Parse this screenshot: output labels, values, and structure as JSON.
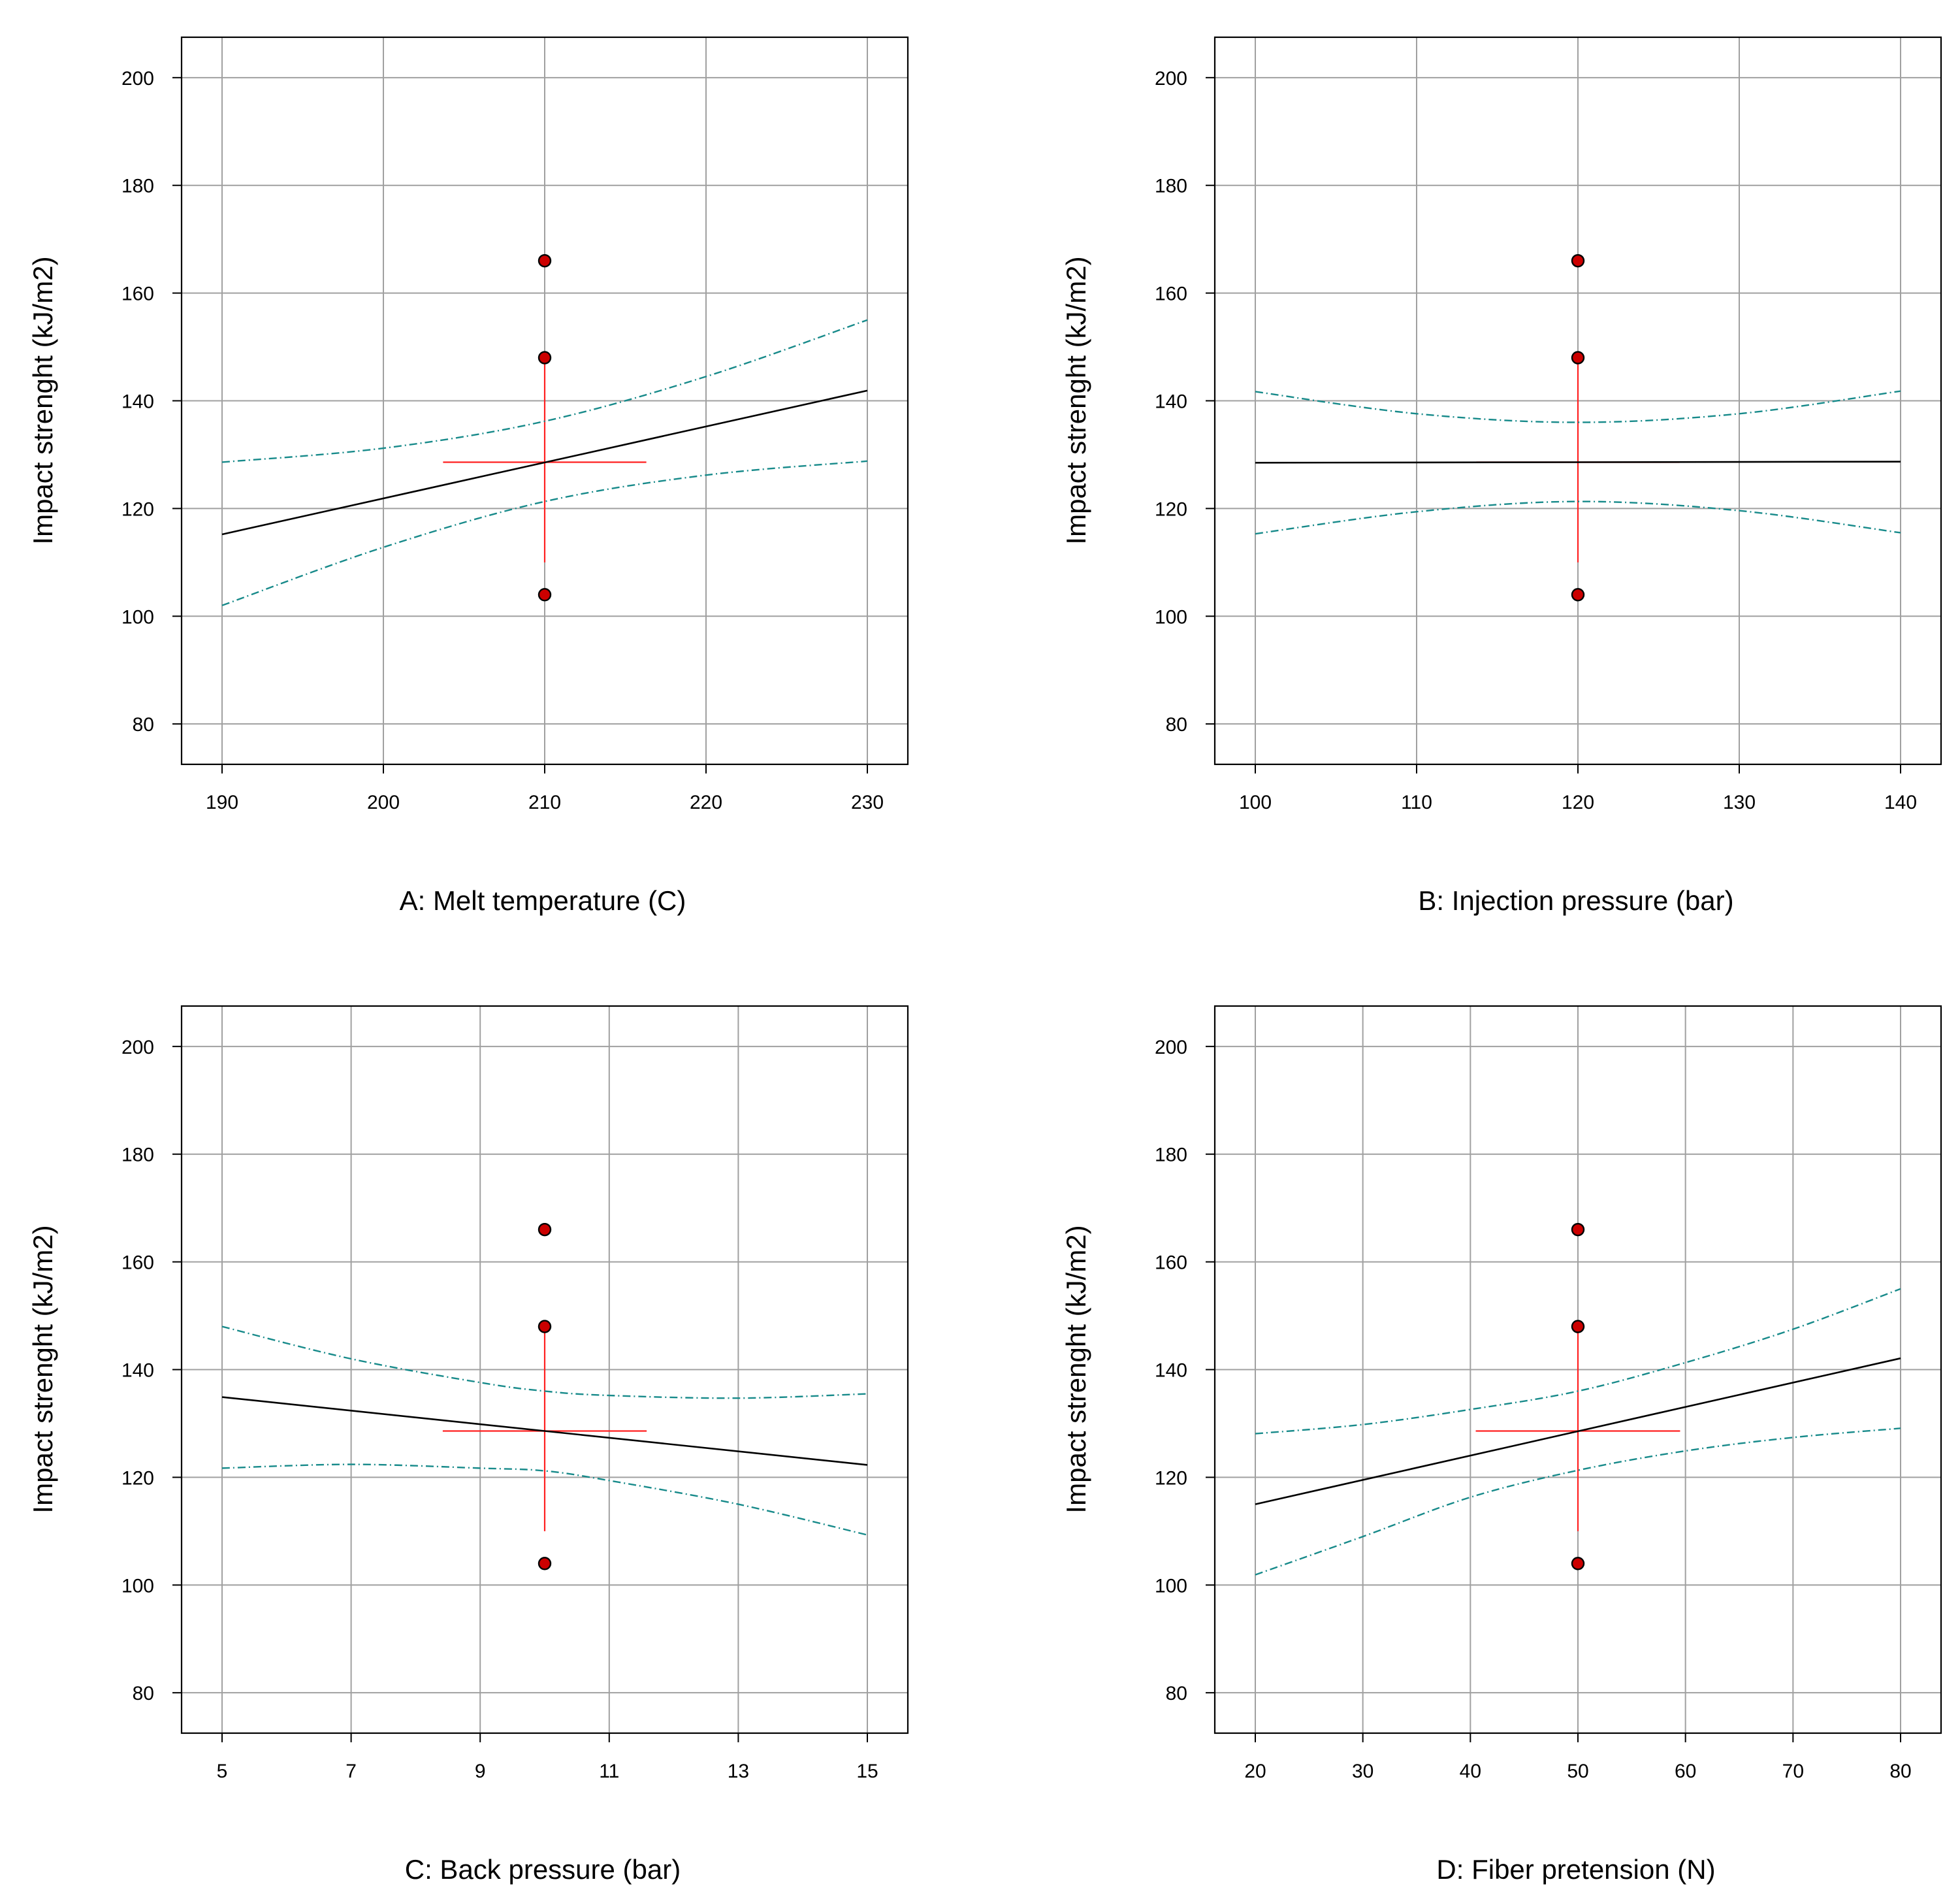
{
  "colors": {
    "fit": "#000000",
    "ci": "#178a8a",
    "lsd": "#ff2020",
    "point": "#cc0000",
    "grid": "#a0a0a0"
  },
  "chart_data": [
    {
      "type": "line",
      "factor_label": "A: Melt temperature (C)",
      "ylabel": "Impact strenght (kJ/m2)",
      "xlim": [
        190,
        230
      ],
      "ylim": [
        72.5,
        207.5
      ],
      "xticks": [
        190,
        200,
        210,
        220,
        230
      ],
      "xtick_labels": [
        "190",
        "200",
        "210",
        "220",
        "230"
      ],
      "yticks": [
        80,
        100,
        120,
        140,
        160,
        180,
        200
      ],
      "ytick_labels": [
        "80",
        "100",
        "120",
        "140",
        "160",
        "180",
        "200"
      ],
      "grid": true,
      "series": [
        {
          "name": "prediction",
          "x": [
            190,
            230
          ],
          "y": [
            115.2,
            141.9
          ]
        },
        {
          "name": "upper 95% CI",
          "x": [
            190,
            200,
            210,
            220,
            230
          ],
          "y": [
            128.6,
            131.2,
            136.2,
            144.5,
            155.0
          ]
        },
        {
          "name": "lower 95% CI",
          "x": [
            190,
            200,
            210,
            220,
            230
          ],
          "y": [
            102.0,
            112.8,
            121.3,
            126.2,
            128.8
          ]
        }
      ],
      "lsd_bar": {
        "center_x": 210,
        "center_y": 128.6,
        "x_half_width": 6.3,
        "y_low": 110,
        "y_high": 147
      },
      "design_points": {
        "x": [
          210,
          210,
          210
        ],
        "y": [
          166,
          148,
          104
        ]
      }
    },
    {
      "type": "line",
      "factor_label": "B: Injection pressure (bar)",
      "ylabel": "Impact strenght (kJ/m2)",
      "xlim": [
        100,
        140
      ],
      "ylim": [
        72.5,
        207.5
      ],
      "xticks": [
        100,
        110,
        120,
        130,
        140
      ],
      "xtick_labels": [
        "100",
        "110",
        "120",
        "130",
        "140"
      ],
      "yticks": [
        80,
        100,
        120,
        140,
        160,
        180,
        200
      ],
      "ytick_labels": [
        "80",
        "100",
        "120",
        "140",
        "160",
        "180",
        "200"
      ],
      "grid": true,
      "series": [
        {
          "name": "prediction",
          "x": [
            100,
            140
          ],
          "y": [
            128.5,
            128.7
          ]
        },
        {
          "name": "upper 95% CI",
          "x": [
            100,
            110,
            120,
            130,
            140
          ],
          "y": [
            141.7,
            137.6,
            136.0,
            137.6,
            141.8
          ]
        },
        {
          "name": "lower 95% CI",
          "x": [
            100,
            110,
            120,
            130,
            140
          ],
          "y": [
            115.3,
            119.4,
            121.3,
            119.6,
            115.5
          ]
        }
      ],
      "lsd_bar": {
        "center_x": 120,
        "center_y": 128.6,
        "x_half_width": 6.3,
        "y_low": 110,
        "y_high": 147
      },
      "design_points": {
        "x": [
          120,
          120,
          120
        ],
        "y": [
          166,
          148,
          104
        ]
      }
    },
    {
      "type": "line",
      "factor_label": "C: Back pressure (bar)",
      "ylabel": "Impact strenght (kJ/m2)",
      "xlim": [
        5,
        15
      ],
      "ylim": [
        72.5,
        207.5
      ],
      "xticks": [
        5,
        7,
        9,
        11,
        13,
        15
      ],
      "xtick_labels": [
        "5",
        "7",
        "9",
        "11",
        "13",
        "15"
      ],
      "yticks": [
        80,
        100,
        120,
        140,
        160,
        180,
        200
      ],
      "ytick_labels": [
        "80",
        "100",
        "120",
        "140",
        "160",
        "180",
        "200"
      ],
      "grid": true,
      "series": [
        {
          "name": "prediction",
          "x": [
            5,
            15
          ],
          "y": [
            134.9,
            122.3
          ]
        },
        {
          "name": "upper 95% CI",
          "x": [
            5,
            7,
            9,
            10,
            11,
            13,
            15
          ],
          "y": [
            148.0,
            142.0,
            137.6,
            136.0,
            135.2,
            134.7,
            135.5
          ]
        },
        {
          "name": "lower 95% CI",
          "x": [
            5,
            7,
            9,
            10,
            11,
            13,
            15
          ],
          "y": [
            121.7,
            122.4,
            121.7,
            121.2,
            119.4,
            115.0,
            109.3
          ]
        }
      ],
      "lsd_bar": {
        "center_x": 10,
        "center_y": 128.6,
        "x_half_width": 1.58,
        "y_low": 110,
        "y_high": 147
      },
      "design_points": {
        "x": [
          10,
          10,
          10
        ],
        "y": [
          166,
          148,
          104
        ]
      }
    },
    {
      "type": "line",
      "factor_label": "D: Fiber pretension (N)",
      "ylabel": "Impact strenght (kJ/m2)",
      "xlim": [
        20,
        80
      ],
      "ylim": [
        72.5,
        207.5
      ],
      "xticks": [
        20,
        30,
        40,
        50,
        60,
        70,
        80
      ],
      "xtick_labels": [
        "20",
        "30",
        "40",
        "50",
        "60",
        "70",
        "80"
      ],
      "yticks": [
        80,
        100,
        120,
        140,
        160,
        180,
        200
      ],
      "ytick_labels": [
        "80",
        "100",
        "120",
        "140",
        "160",
        "180",
        "200"
      ],
      "grid": true,
      "series": [
        {
          "name": "prediction",
          "x": [
            20,
            80
          ],
          "y": [
            115.0,
            142.1
          ]
        },
        {
          "name": "upper 95% CI",
          "x": [
            20,
            30,
            40,
            50,
            60,
            70,
            80
          ],
          "y": [
            128.1,
            129.8,
            132.6,
            136.0,
            141.3,
            147.5,
            155.0
          ]
        },
        {
          "name": "lower 95% CI",
          "x": [
            20,
            30,
            40,
            50,
            60,
            70,
            80
          ],
          "y": [
            101.9,
            109.0,
            116.3,
            121.3,
            124.9,
            127.4,
            129.1
          ]
        }
      ],
      "lsd_bar": {
        "center_x": 50,
        "center_y": 128.6,
        "x_half_width": 9.5,
        "y_low": 110,
        "y_high": 147
      },
      "design_points": {
        "x": [
          50,
          50,
          50
        ],
        "y": [
          166,
          148,
          104
        ]
      }
    }
  ]
}
